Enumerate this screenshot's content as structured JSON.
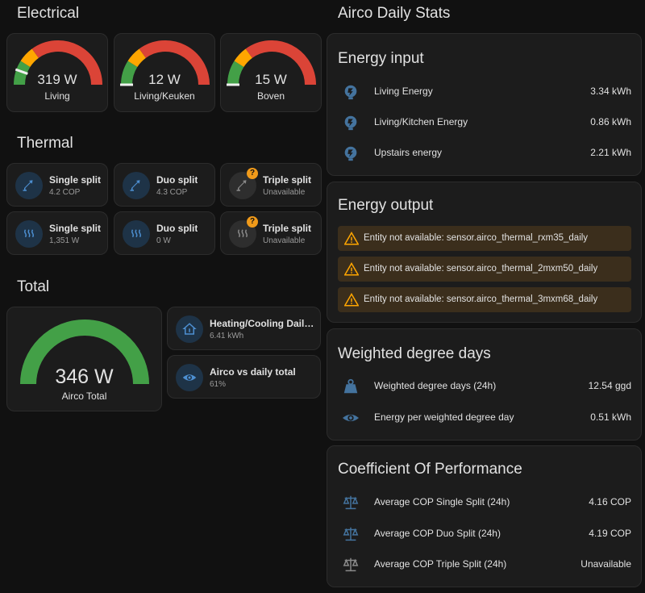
{
  "sections": {
    "electrical": "Electrical",
    "thermal": "Thermal",
    "total": "Total",
    "airco_daily": "Airco Daily Stats"
  },
  "electrical_gauges": [
    {
      "value": "319 W",
      "name": "Living",
      "fraction": 0.11
    },
    {
      "value": "12 W",
      "name": "Living/Keuken",
      "fraction": 0.0
    },
    {
      "value": "15 W",
      "name": "Boven",
      "fraction": 0.0
    }
  ],
  "thermal_tiles": [
    {
      "name": "Single split",
      "state": "4.2 COP",
      "icon": "hvac-icon"
    },
    {
      "name": "Duo split",
      "state": "4.3 COP",
      "icon": "hvac-icon"
    },
    {
      "name": "Triple split",
      "state": "Unavailable",
      "icon": "hvac-icon",
      "badge": "?"
    },
    {
      "name": "Single split",
      "state": "1,351 W",
      "icon": "heat-wave-icon"
    },
    {
      "name": "Duo split",
      "state": "0 W",
      "icon": "heat-wave-icon"
    },
    {
      "name": "Triple split",
      "state": "Unavailable",
      "icon": "heat-wave-icon",
      "badge": "?"
    }
  ],
  "total_gauge": {
    "value": "346 W",
    "name": "Airco Total",
    "fraction": 1.0
  },
  "total_tiles": [
    {
      "name": "Heating/Cooling Daily T...",
      "state": "6.41 kWh",
      "icon": "home-thermometer-icon"
    },
    {
      "name": "Airco vs daily total",
      "state": "61%",
      "icon": "eye-icon"
    }
  ],
  "energy_input": {
    "title": "Energy input",
    "rows": [
      {
        "name": "Living Energy",
        "value": "3.34 kWh"
      },
      {
        "name": "Living/Kitchen Energy",
        "value": "0.86 kWh"
      },
      {
        "name": "Upstairs energy",
        "value": "2.21 kWh"
      }
    ]
  },
  "energy_output": {
    "title": "Energy output",
    "warnings": [
      "Entity not available: sensor.airco_thermal_rxm35_daily",
      "Entity not available: sensor.airco_thermal_2mxm50_daily",
      "Entity not available: sensor.airco_thermal_3mxm68_daily"
    ]
  },
  "weighted": {
    "title": "Weighted degree days",
    "rows": [
      {
        "name": "Weighted degree days (24h)",
        "value": "12.54 ggd"
      },
      {
        "name": "Energy per weighted degree day",
        "value": "0.51 kWh"
      }
    ]
  },
  "cop": {
    "title": "Coefficient Of Performance",
    "rows": [
      {
        "name": "Average COP Single Split (24h)",
        "value": "4.16 COP"
      },
      {
        "name": "Average COP Duo Split (24h)",
        "value": "4.19 COP"
      },
      {
        "name": "Average COP Triple Split (24h)",
        "value": "Unavailable"
      }
    ]
  },
  "colors": {
    "green": "#43a047",
    "yellow": "#ffa600",
    "red": "#db4437",
    "blue_icon": "#44739e",
    "icon_grey": "#9b9b9b",
    "warning": "#ffa600"
  }
}
